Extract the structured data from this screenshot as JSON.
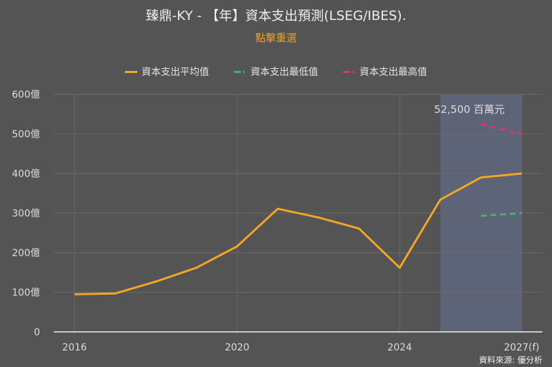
{
  "header": {
    "title": "臻鼎-KY - 【年】資本支出預測(LSEG/IBES).",
    "reset_label": "點擊重選"
  },
  "legend": [
    {
      "label": "資本支出平均值",
      "color": "#f5a623",
      "style": "solid"
    },
    {
      "label": "資本支出最低值",
      "color": "#4caf6a",
      "style": "dashed"
    },
    {
      "label": "資本支出最高值",
      "color": "#e0306e",
      "style": "dashed"
    }
  ],
  "annotation": "52,500 百萬元",
  "source": "資料來源: 優分析",
  "colors": {
    "background": "#545454",
    "forecast_band": "#5d6478",
    "gridline": "#6a6a6a",
    "axis": "#c8ccd8"
  },
  "chart_data": {
    "type": "line",
    "title": "臻鼎-KY - 【年】資本支出預測(LSEG/IBES).",
    "xlabel": "",
    "ylabel": "",
    "ylim": [
      0,
      600
    ],
    "y_ticks": [
      "0",
      "100億",
      "200億",
      "300億",
      "400億",
      "500億",
      "600億"
    ],
    "x_ticks": [
      "2016",
      "2020",
      "2024",
      "2027(f)"
    ],
    "x": [
      2016,
      2017,
      2018,
      2019,
      2020,
      2021,
      2022,
      2023,
      2024,
      2025,
      2026,
      2027
    ],
    "forecast_region": [
      2025,
      2027
    ],
    "grid": true,
    "legend_position": "top",
    "series": [
      {
        "name": "資本支出平均值",
        "unit": "億",
        "values": [
          95,
          97,
          127,
          162,
          216,
          311,
          289,
          261,
          162,
          334,
          390,
          400
        ]
      },
      {
        "name": "資本支出最低值",
        "unit": "億",
        "values": [
          null,
          null,
          null,
          null,
          null,
          null,
          null,
          null,
          null,
          null,
          293,
          300
        ]
      },
      {
        "name": "資本支出最高值",
        "unit": "億",
        "values": [
          null,
          null,
          null,
          null,
          null,
          null,
          null,
          null,
          null,
          null,
          525,
          500
        ]
      }
    ],
    "annotations": [
      {
        "text": "52,500 百萬元",
        "x": 2026,
        "y": 525
      }
    ]
  }
}
